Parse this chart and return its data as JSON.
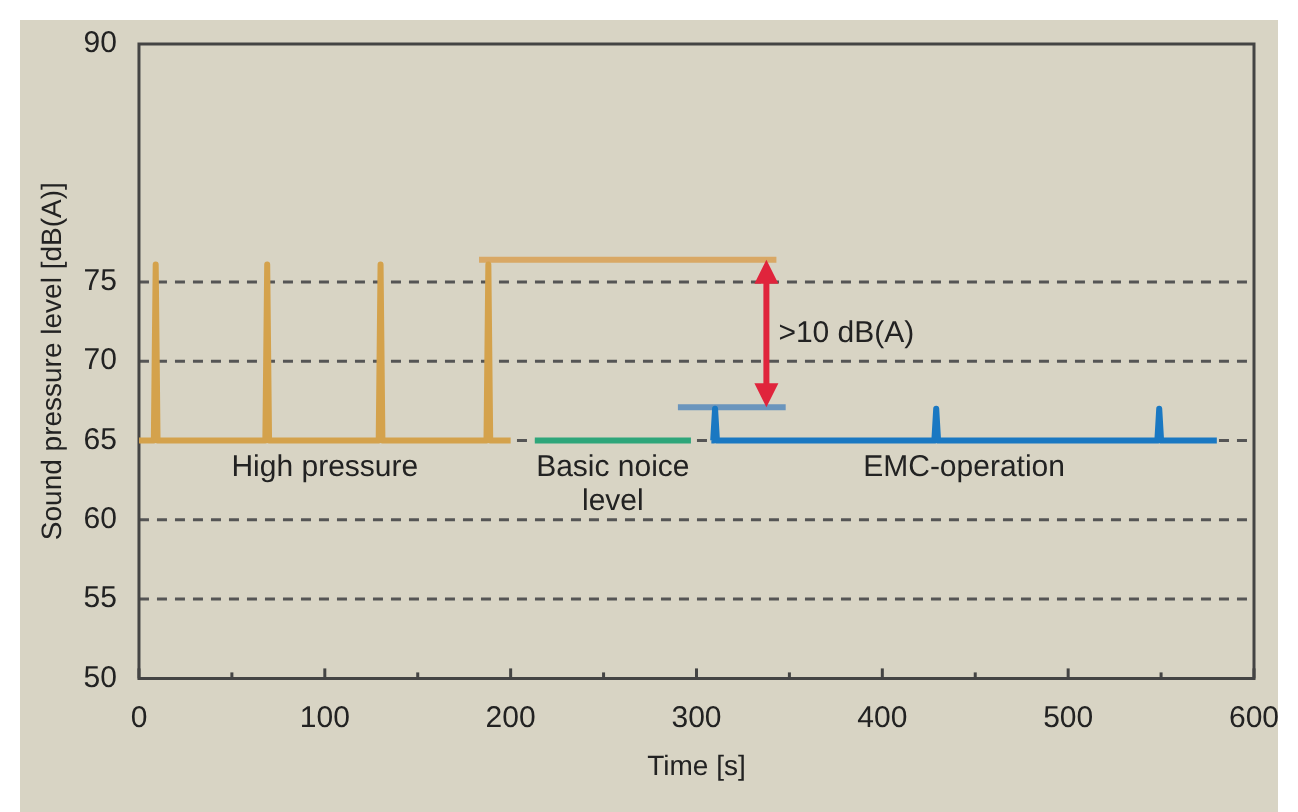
{
  "chart_data": {
    "type": "line",
    "xlabel": "Time [s]",
    "ylabel": "Sound pressure level [dB(A)]",
    "xlim": [
      0,
      600
    ],
    "xticks": [
      0,
      {
        "value": 50,
        "label": null
      },
      100,
      {
        "value": 150,
        "label": null
      },
      200,
      {
        "value": 250,
        "label": null
      },
      300,
      {
        "value": 350,
        "label": null
      },
      400,
      {
        "value": 450,
        "label": null
      },
      500,
      {
        "value": 550,
        "label": null
      },
      600
    ],
    "ylim": [
      50,
      90
    ],
    "yticks": [
      50,
      55,
      60,
      65,
      70,
      75,
      90
    ],
    "grid": "y",
    "line_style": "solid",
    "marker": "none",
    "legend": false,
    "series": [
      {
        "name": "High pressure",
        "color": "#d4a24c",
        "x": [
          0,
          8,
          9,
          10,
          68,
          69,
          70,
          129,
          130,
          131,
          187,
          188,
          189,
          200
        ],
        "values": [
          65,
          65,
          76.1,
          65,
          65,
          76.1,
          65,
          65,
          76.1,
          65,
          65,
          76.1,
          65,
          65
        ]
      },
      {
        "color": "#d9a865",
        "x": [
          183,
          343
        ],
        "values": [
          76.4,
          76.4
        ]
      },
      {
        "name": "Basic noice level",
        "color": "#2ea67a",
        "x": [
          213,
          297
        ],
        "values": [
          65,
          65
        ]
      },
      {
        "name": "EMC-operation",
        "color": "#1a78c2",
        "x": [
          308,
          309,
          310,
          311,
          428,
          429,
          430,
          548,
          549,
          550,
          580
        ],
        "values": [
          65,
          65,
          67,
          65,
          65,
          67,
          65,
          65,
          67,
          65,
          65
        ]
      },
      {
        "color": "#6a95bd",
        "x": [
          290,
          348
        ],
        "values": [
          67.1,
          67.1
        ]
      }
    ],
    "annotations": [
      ">10 dB(A)"
    ]
  }
}
